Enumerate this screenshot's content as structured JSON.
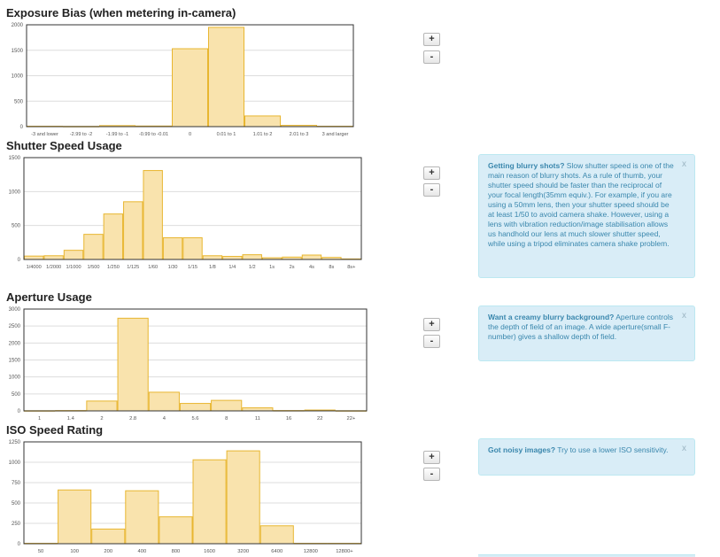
{
  "charts": [
    {
      "id": "exposure",
      "title": "Exposure Bias (when metering in-camera)",
      "zoom_in_label": "+",
      "zoom_out_label": "-",
      "tip": null
    },
    {
      "id": "shutter",
      "title": "Shutter Speed Usage",
      "zoom_in_label": "+",
      "zoom_out_label": "-",
      "tip": {
        "heading": "Getting blurry shots?",
        "body": " Slow shutter speed is one of the main reason of blurry shots. As a rule of thumb, your shutter speed should be faster than the reciprocal of your focal length(35mm equiv.). For example, if you are using a 50mm lens, then your shutter speed should be at least 1/50 to avoid camera shake. However, using a lens with vibration reduction/image stabilisation allows us handhold our lens at much slower shutter speed, while using a tripod eliminates camera shake problem.",
        "close": "x"
      }
    },
    {
      "id": "aperture",
      "title": "Aperture Usage",
      "zoom_in_label": "+",
      "zoom_out_label": "-",
      "tip": {
        "heading": "Want a creamy blurry background?",
        "body": " Aperture controls the depth of field of an image. A wide aperture(small F-number) gives a shallow depth of field.",
        "close": "x"
      }
    },
    {
      "id": "iso",
      "title": "ISO Speed Rating",
      "zoom_in_label": "+",
      "zoom_out_label": "-",
      "tip": {
        "heading": "Got noisy images?",
        "body": " Try to use a lower ISO sensitivity.",
        "close": "x"
      }
    }
  ],
  "colors": {
    "bar_fill": "#f9e3ad",
    "bar_stroke": "#e8b630",
    "grid": "#dddddd",
    "axis_text": "#555555"
  },
  "chart_data": [
    {
      "type": "bar",
      "title": "Exposure Bias (when metering in-camera)",
      "categories": [
        "-3 and lower",
        "-2.99 to -2",
        "-1.99 to -1",
        "-0.99 to -0.01",
        "0",
        "0.01 to 1",
        "1.01 to 2",
        "2.01 to 3",
        "3 and larger"
      ],
      "values": [
        8,
        5,
        20,
        12,
        1530,
        1950,
        210,
        25,
        8
      ],
      "ylim": [
        0,
        2000
      ],
      "yticks": [
        0,
        500,
        1000,
        1500,
        2000
      ],
      "xlabel": "",
      "ylabel": ""
    },
    {
      "type": "bar",
      "title": "Shutter Speed Usage",
      "categories": [
        "1/4000",
        "1/2000",
        "1/1000",
        "1/500",
        "1/250",
        "1/125",
        "1/60",
        "1/30",
        "1/15",
        "1/8",
        "1/4",
        "1/2",
        "1s",
        "2s",
        "4s",
        "8s",
        "8s+"
      ],
      "tick_labels": [
        "1/4000",
        "1/2000",
        "1/1000",
        "1/500",
        "1/250",
        "1/125",
        "1/60",
        "1/30",
        "1/15",
        "1/8",
        "1/4",
        "1/2",
        "1s",
        "2s",
        "4s",
        "8s",
        "8s+"
      ],
      "values": [
        50,
        55,
        135,
        370,
        670,
        850,
        1310,
        320,
        320,
        55,
        45,
        70,
        25,
        35,
        65,
        30,
        8
      ],
      "ylim": [
        0,
        1500
      ],
      "yticks": [
        0,
        500,
        1000,
        1500
      ],
      "xlabel": "",
      "ylabel": ""
    },
    {
      "type": "bar",
      "title": "Aperture Usage",
      "categories": [
        "1",
        "1.4",
        "2",
        "2.8",
        "4",
        "5.6",
        "8",
        "11",
        "16",
        "22",
        "22+"
      ],
      "values": [
        5,
        10,
        290,
        2730,
        550,
        220,
        310,
        90,
        10,
        25,
        5
      ],
      "ylim": [
        0,
        3000
      ],
      "yticks": [
        0,
        500,
        1000,
        1500,
        2000,
        2500,
        3000
      ],
      "xlabel": "",
      "ylabel": ""
    },
    {
      "type": "bar",
      "title": "ISO Speed Rating",
      "categories": [
        "50",
        "100",
        "200",
        "400",
        "800",
        "1600",
        "3200",
        "6400",
        "12800",
        "12800+"
      ],
      "values": [
        5,
        660,
        180,
        650,
        330,
        1030,
        1140,
        220,
        5,
        5
      ],
      "ylim": [
        0,
        1250
      ],
      "yticks": [
        0,
        250,
        500,
        750,
        1000,
        1250
      ],
      "xlabel": "",
      "ylabel": ""
    }
  ]
}
